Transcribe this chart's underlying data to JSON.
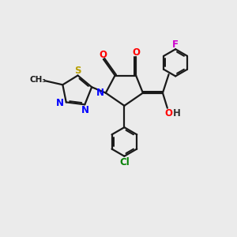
{
  "bg_color": "#ebebeb",
  "line_color": "#1a1a1a",
  "line_width": 1.6,
  "font_size": 8.5,
  "atoms": {
    "N": {
      "color": "blue"
    },
    "O": {
      "color": "red"
    },
    "S": {
      "color": "#cccc00"
    },
    "N_td": {
      "color": "blue"
    },
    "F": {
      "color": "#cc00cc"
    },
    "Cl": {
      "color": "green"
    },
    "OH": {
      "color": "red"
    }
  }
}
